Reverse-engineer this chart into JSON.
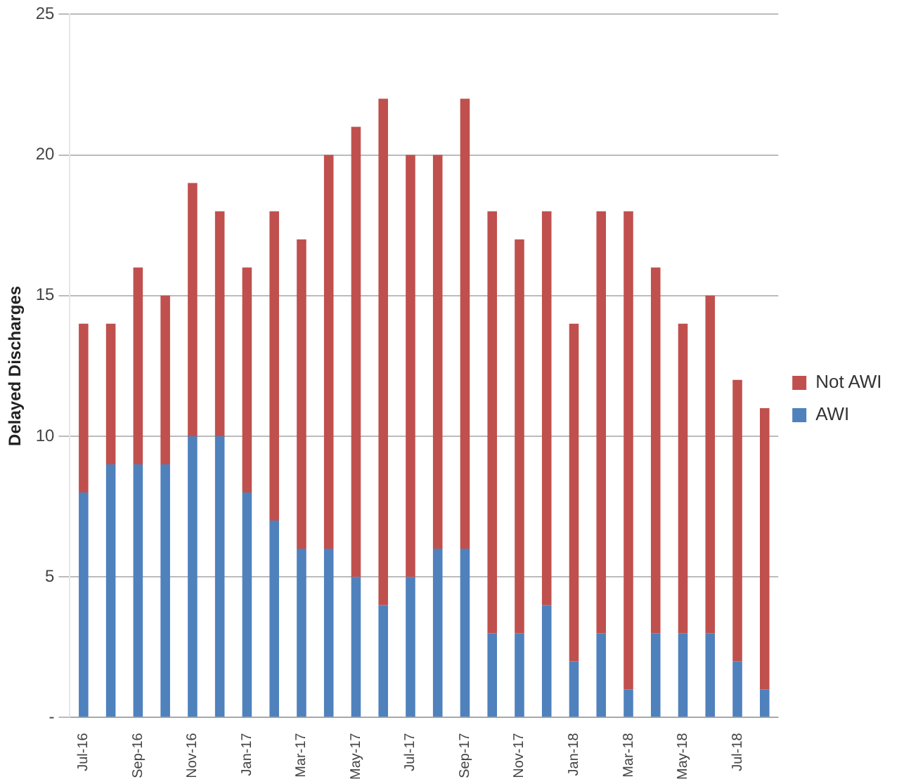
{
  "chart_data": {
    "type": "bar",
    "stacked": true,
    "ylabel": "Delayed Discharges",
    "categories": [
      "Jul-16",
      null,
      "Sep-16",
      null,
      "Nov-16",
      null,
      "Jan-17",
      null,
      "Mar-17",
      null,
      "May-17",
      null,
      "Jul-17",
      null,
      "Sep-17",
      null,
      "Nov-17",
      null,
      "Jan-18",
      null,
      "Mar-18",
      null,
      "May-18",
      null,
      "Jul-18",
      null
    ],
    "series": [
      {
        "name": "AWI",
        "color": "#4f81bd",
        "values": [
          8,
          9,
          9,
          9,
          10,
          10,
          8,
          7,
          6,
          6,
          5,
          4,
          5,
          6,
          6,
          3,
          3,
          4,
          2,
          3,
          1,
          3,
          3,
          3,
          2,
          1
        ]
      },
      {
        "name": "Not AWI",
        "color": "#c0504d",
        "values": [
          6,
          5,
          7,
          6,
          9,
          8,
          8,
          11,
          11,
          14,
          16,
          18,
          15,
          14,
          16,
          15,
          14,
          14,
          12,
          15,
          17,
          13,
          11,
          12,
          10,
          10
        ]
      }
    ],
    "ylim": [
      0,
      25
    ],
    "yticks": [
      {
        "value": 0,
        "label": "-"
      },
      5,
      10,
      15,
      20,
      25
    ],
    "grid": "y",
    "legend": "right"
  }
}
